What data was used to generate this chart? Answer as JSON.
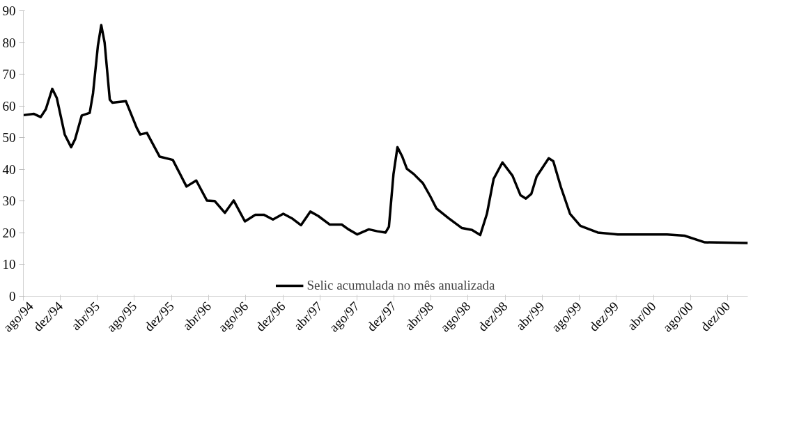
{
  "chart_data": {
    "type": "line",
    "x": [
      "1994-08-01",
      "1994-09-05",
      "1994-09-27",
      "1994-10-14",
      "1994-11-04",
      "1994-11-19",
      "1994-12-15",
      "1995-01-05",
      "1995-01-18",
      "1995-02-09",
      "1995-03-07",
      "1995-03-18",
      "1995-04-03",
      "1995-04-14",
      "1995-04-25",
      "1995-05-12",
      "1995-05-21",
      "1995-07-04",
      "1995-08-09",
      "1995-08-20",
      "1995-09-11",
      "1995-10-23",
      "1995-12-05",
      "1996-01-19",
      "1996-02-20",
      "1996-03-26",
      "1996-04-21",
      "1996-05-24",
      "1996-06-22",
      "1996-07-29",
      "1996-09-01",
      "1996-09-29",
      "1996-10-29",
      "1996-12-02",
      "1996-12-30",
      "1997-01-29",
      "1997-03-01",
      "1997-03-27",
      "1997-05-04",
      "1997-06-12",
      "1997-07-04",
      "1997-08-02",
      "1997-09-09",
      "1997-10-07",
      "1997-11-03",
      "1997-11-14",
      "1997-11-29",
      "1997-12-12",
      "1997-12-28",
      "1998-01-12",
      "1998-02-04",
      "1998-03-06",
      "1998-03-30",
      "1998-04-19",
      "1998-05-29",
      "1998-07-12",
      "1998-08-14",
      "1998-09-10",
      "1998-10-02",
      "1998-10-24",
      "1998-11-22",
      "1998-12-25",
      "1999-01-20",
      "1999-02-07",
      "1999-02-25",
      "1999-03-14",
      "1999-04-23",
      "1999-05-08",
      "1999-06-02",
      "1999-07-02",
      "1999-08-05",
      "1999-10-01",
      "1999-12-06",
      "2000-05-16",
      "2000-07-12",
      "2000-09-17",
      "2001-02-05"
    ],
    "series": [
      {
        "name": "Selic acumulada no mês anualizada",
        "color": "#000000",
        "values": [
          57.1,
          57.5,
          56.5,
          59,
          65.4,
          62.5,
          51,
          47,
          49.5,
          57,
          57.8,
          64,
          79,
          85.5,
          80,
          62,
          61,
          61.5,
          53,
          51,
          51.5,
          44,
          43,
          34.6,
          36.5,
          30.2,
          30,
          26.3,
          30.2,
          23.6,
          25.7,
          25.7,
          24.2,
          26,
          24.6,
          22.4,
          26.7,
          25.3,
          22.6,
          22.6,
          21.1,
          19.5,
          21.1,
          20.5,
          20.1,
          21.9,
          38.5,
          47,
          44,
          40.2,
          38.5,
          35.6,
          31.5,
          27.7,
          24.6,
          21.5,
          20.9,
          19.3,
          26,
          37,
          42.2,
          38,
          31.9,
          30.8,
          32.3,
          37.7,
          43.5,
          42.6,
          34.4,
          26,
          22.2,
          20.1,
          19.5,
          19.5,
          19.1,
          17,
          16.8
        ]
      }
    ],
    "xlim": [
      "1994-08-01",
      "2001-02-05"
    ],
    "xticks": [
      {
        "value": "1994-08",
        "label": "ago/94"
      },
      {
        "value": "1994-12",
        "label": "dez/94"
      },
      {
        "value": "1995-04",
        "label": "abr/95"
      },
      {
        "value": "1995-08",
        "label": "ago/95"
      },
      {
        "value": "1995-12",
        "label": "dez/95"
      },
      {
        "value": "1996-04",
        "label": "abr/96"
      },
      {
        "value": "1996-08",
        "label": "ago/96"
      },
      {
        "value": "1996-12",
        "label": "dez/96"
      },
      {
        "value": "1997-04",
        "label": "abr/97"
      },
      {
        "value": "1997-08",
        "label": "ago/97"
      },
      {
        "value": "1997-12",
        "label": "dez/97"
      },
      {
        "value": "1998-04",
        "label": "abr/98"
      },
      {
        "value": "1998-08",
        "label": "ago/98"
      },
      {
        "value": "1998-12",
        "label": "dez/98"
      },
      {
        "value": "1999-04",
        "label": "abr/99"
      },
      {
        "value": "1999-08",
        "label": "ago/99"
      },
      {
        "value": "1999-12",
        "label": "dez/99"
      },
      {
        "value": "2000-04",
        "label": "abr/00"
      },
      {
        "value": "2000-08",
        "label": "ago/00"
      },
      {
        "value": "2000-12",
        "label": "dez/00"
      }
    ],
    "ylim": [
      0,
      90
    ],
    "yticks": [
      0,
      10,
      20,
      30,
      40,
      50,
      60,
      70,
      80,
      90
    ],
    "grid": false,
    "legend": "bottom",
    "line_style": "solid",
    "marker": "none"
  }
}
